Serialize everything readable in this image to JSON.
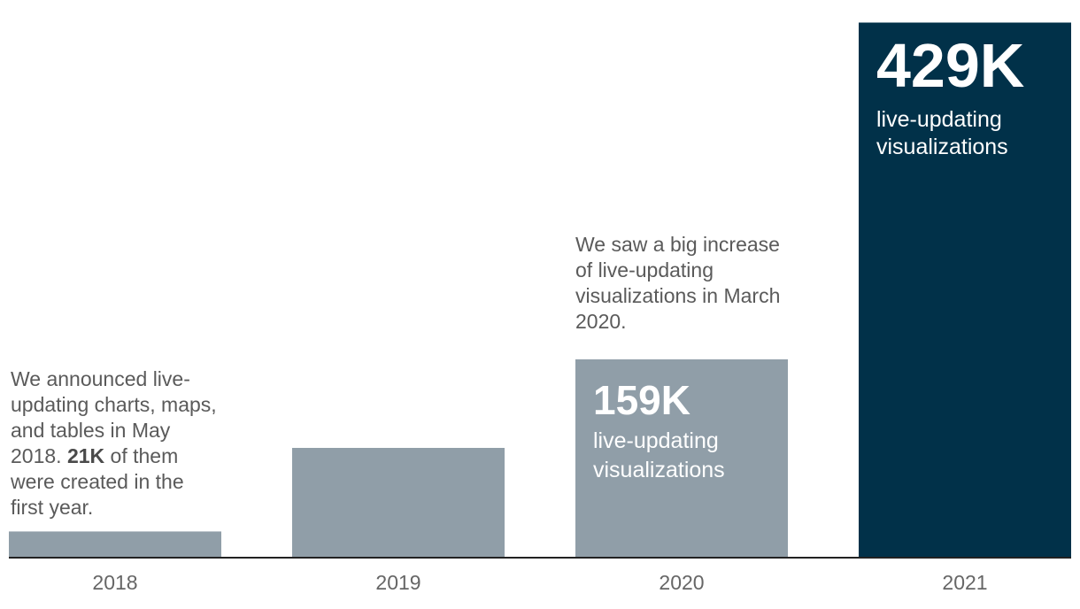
{
  "chart_data": {
    "type": "bar",
    "categories": [
      "2018",
      "2019",
      "2020",
      "2021"
    ],
    "values": [
      21,
      88,
      159,
      429
    ],
    "ylim": [
      0,
      440
    ],
    "grid": false,
    "bar_colors": [
      "#909ea8",
      "#909ea8",
      "#909ea8",
      "#013149"
    ],
    "axis_color": "#222222",
    "tick_color": "#666666",
    "annotations": {
      "a2018": {
        "pre": "We announced live-updating charts, maps, and tables in May 2018.",
        "bold": "21K",
        "post": "of them were created in the first year."
      },
      "a2020": "We saw a big increase of live-updating visualizations in March 2020."
    },
    "data_labels": {
      "l2020": {
        "value": "159K",
        "text": "live-updating visualizations"
      },
      "l2021": {
        "value": "429K",
        "text": "live-updating visualizations"
      }
    }
  }
}
